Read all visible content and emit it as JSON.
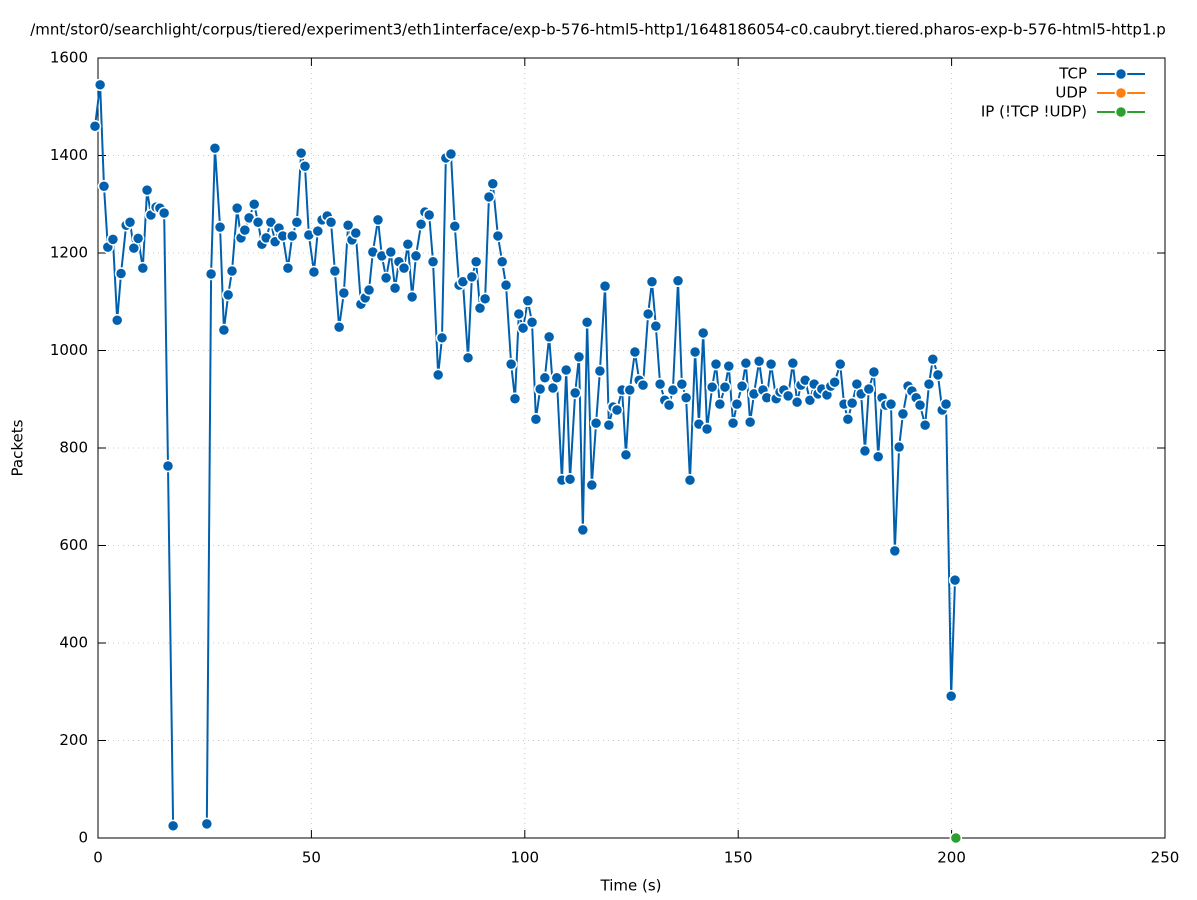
{
  "chart_data": {
    "type": "line",
    "title": "/mnt/stor0/searchlight/corpus/tiered/experiment3/eth1interface/exp-b-576-html5-http1/1648186054-c0.caubryt.tiered.pharos-exp-b-576-html5-http1.p",
    "x_label": "Time (s)",
    "y_label": "Packets",
    "xlim": [
      0,
      250
    ],
    "xticks": [
      0,
      50,
      100,
      150,
      200,
      250
    ],
    "ylim": [
      0,
      1600
    ],
    "yticks": [
      0,
      200,
      400,
      600,
      800,
      1000,
      1200,
      1400,
      1600
    ],
    "grid": true,
    "legend": "top-right",
    "series": [
      {
        "name": "TCP",
        "color": "#0060ad",
        "x": [
          -0.7,
          0.5,
          1.4,
          2.3,
          3.5,
          4.5,
          5.4,
          6.6,
          7.5,
          8.4,
          9.4,
          10.5,
          11.5,
          12.4,
          13.6,
          14.5,
          15.5,
          16.4,
          17.6,
          null,
          25.5,
          26.5,
          27.4,
          28.6,
          29.5,
          30.5,
          31.4,
          32.6,
          33.5,
          34.4,
          35.4,
          36.6,
          37.5,
          38.4,
          39.4,
          40.5,
          41.5,
          42.4,
          43.3,
          44.5,
          45.5,
          46.6,
          47.6,
          48.5,
          49.4,
          50.6,
          51.5,
          52.5,
          53.7,
          54.6,
          55.5,
          56.5,
          57.6,
          58.6,
          59.5,
          60.4,
          61.6,
          62.6,
          63.5,
          64.4,
          65.6,
          66.5,
          67.5,
          68.6,
          69.6,
          70.5,
          71.7,
          72.6,
          73.6,
          74.5,
          75.7,
          76.6,
          77.6,
          78.5,
          79.7,
          80.6,
          81.5,
          82.7,
          83.6,
          84.6,
          85.5,
          86.7,
          87.6,
          88.6,
          89.5,
          90.7,
          91.6,
          92.5,
          93.7,
          94.7,
          95.6,
          96.8,
          97.7,
          98.6,
          99.6,
          100.7,
          101.7,
          102.6,
          103.6,
          104.7,
          105.7,
          106.6,
          107.5,
          108.7,
          109.7,
          110.6,
          111.8,
          112.7,
          113.6,
          114.6,
          115.7,
          116.7,
          117.6,
          118.8,
          119.7,
          120.7,
          121.6,
          122.8,
          123.7,
          124.6,
          125.8,
          126.8,
          127.7,
          128.9,
          129.8,
          130.7,
          131.7,
          132.8,
          133.8,
          134.7,
          135.9,
          136.8,
          137.8,
          138.7,
          139.9,
          140.8,
          141.8,
          142.7,
          143.9,
          144.8,
          145.7,
          146.9,
          147.8,
          148.8,
          149.7,
          150.9,
          151.8,
          152.8,
          153.7,
          154.9,
          155.8,
          156.7,
          157.7,
          158.9,
          159.8,
          160.7,
          161.7,
          162.8,
          163.8,
          164.7,
          165.7,
          166.8,
          167.8,
          168.7,
          169.6,
          170.8,
          171.7,
          172.6,
          173.9,
          174.8,
          175.7,
          176.7,
          177.8,
          178.8,
          179.7,
          180.6,
          181.8,
          182.8,
          183.7,
          184.6,
          185.8,
          186.7,
          187.7,
          188.6,
          189.8,
          190.7,
          191.7,
          192.6,
          193.8,
          194.7,
          195.6,
          196.8,
          197.8,
          198.7,
          199.9,
          200.8
        ],
        "values": [
          1460,
          1545,
          1337,
          1212,
          1228,
          1062,
          1158,
          1257,
          1263,
          1210,
          1230,
          1169,
          1329,
          1278,
          1294,
          1292,
          1282,
          763,
          25,
          null,
          29,
          1157,
          1415,
          1253,
          1042,
          1114,
          1163,
          1292,
          1231,
          1247,
          1272,
          1300,
          1263,
          1218,
          1231,
          1263,
          1223,
          1251,
          1235,
          1169,
          1235,
          1263,
          1405,
          1378,
          1237,
          1161,
          1245,
          1268,
          1276,
          1263,
          1163,
          1048,
          1118,
          1257,
          1227,
          1241,
          1095,
          1108,
          1124,
          1202,
          1268,
          1194,
          1149,
          1202,
          1128,
          1182,
          1169,
          1218,
          1110,
          1194,
          1259,
          1284,
          1278,
          1182,
          950,
          1026,
          1395,
          1403,
          1255,
          1134,
          1141,
          985,
          1151,
          1182,
          1087,
          1106,
          1315,
          1342,
          1235,
          1182,
          1134,
          972,
          901,
          1075,
          1046,
          1102,
          1058,
          859,
          921,
          944,
          1028,
          923,
          944,
          734,
          960,
          736,
          913,
          987,
          632,
          1058,
          724,
          851,
          958,
          1132,
          847,
          884,
          878,
          919,
          786,
          919,
          997,
          939,
          929,
          1075,
          1141,
          1050,
          931,
          898,
          888,
          919,
          1143,
          931,
          903,
          734,
          997,
          849,
          1036,
          839,
          925,
          972,
          890,
          925,
          968,
          851,
          890,
          927,
          974,
          853,
          911,
          978,
          919,
          903,
          972,
          901,
          915,
          919,
          907,
          974,
          894,
          929,
          939,
          898,
          931,
          911,
          921,
          909,
          927,
          935,
          972,
          890,
          859,
          892,
          931,
          911,
          794,
          921,
          956,
          782,
          903,
          888,
          890,
          589,
          802,
          870,
          927,
          917,
          903,
          888,
          847,
          931,
          982,
          950,
          878,
          890,
          291,
          529
        ]
      },
      {
        "name": "UDP",
        "color": "#ff7f0e",
        "x": [],
        "values": []
      },
      {
        "name": "IP (!TCP  !UDP)",
        "color": "#2ca02c",
        "x": [
          201
        ],
        "values": [
          0
        ]
      }
    ]
  }
}
